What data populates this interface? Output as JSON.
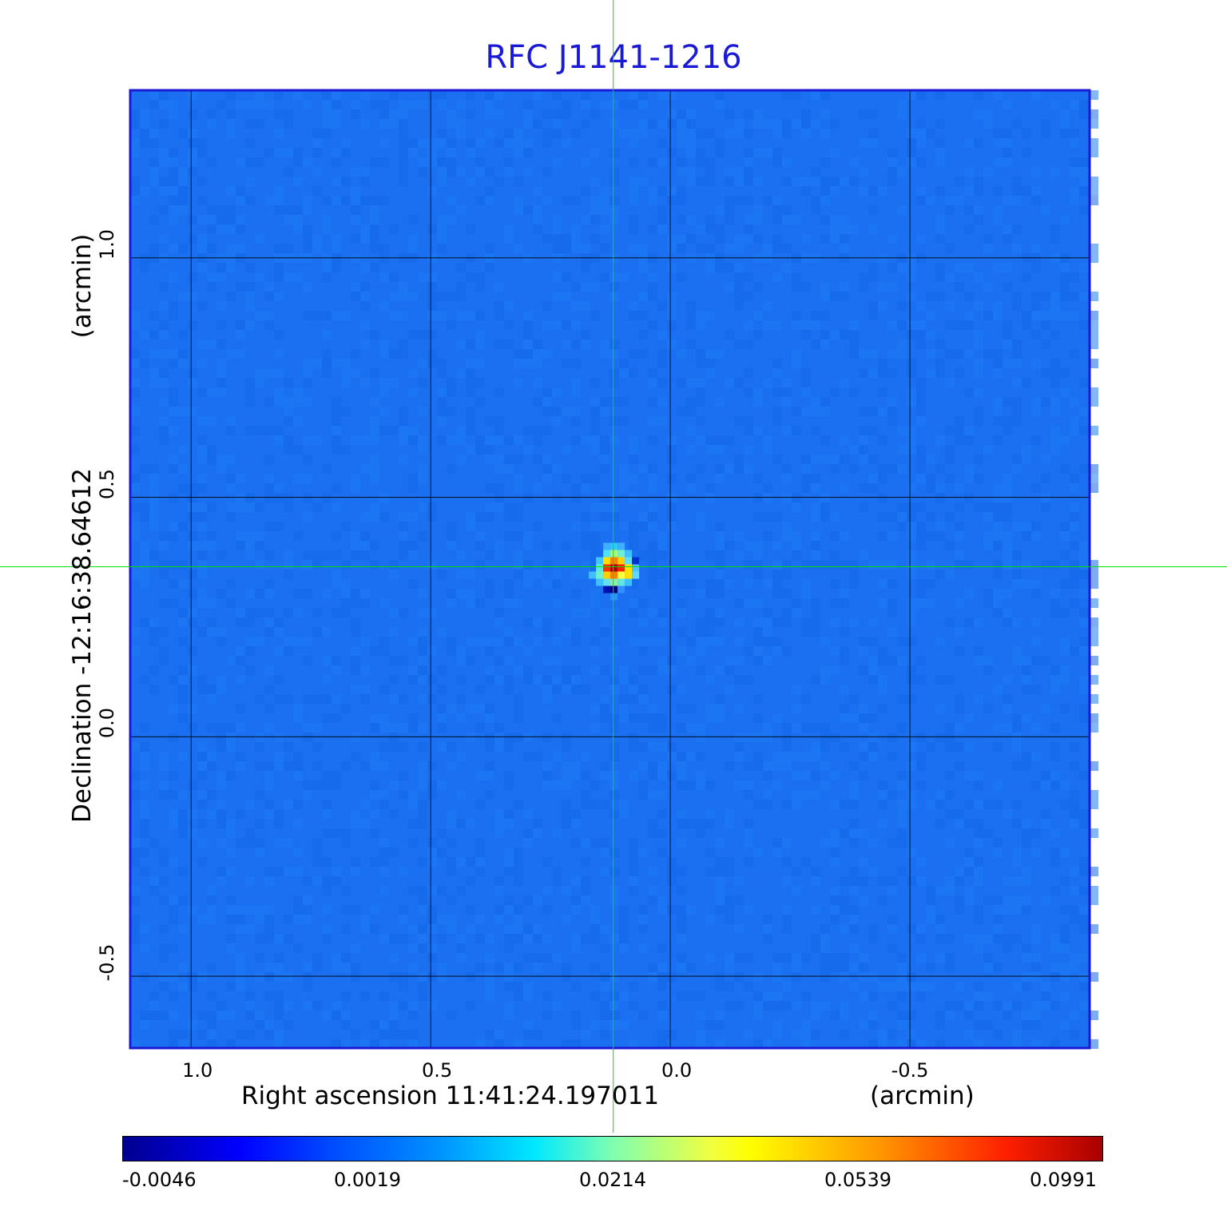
{
  "chart_data": {
    "type": "heatmap",
    "title": "RFC J1141-1216",
    "xlabel": "Right ascension  11:41:24.197011",
    "xunit": "(arcmin)",
    "ylabel": "Declination  -12:16:38.64612",
    "yunit": "(arcmin)",
    "x_ticks": [
      "1.0",
      "0.5",
      "0.0",
      "-0.5"
    ],
    "x_tick_values": [
      1.0,
      0.5,
      0.0,
      -0.5
    ],
    "y_ticks": [
      "1.0",
      "0.5",
      "0.0",
      "-0.5"
    ],
    "y_tick_values": [
      1.0,
      0.5,
      0.0,
      -0.5
    ],
    "xlim": [
      1.127,
      -0.875
    ],
    "ylim": [
      -0.65,
      1.35
    ],
    "grid": true,
    "crosshair": {
      "x": 0.119,
      "y": 0.355,
      "color": "#00e000"
    },
    "source_peak": {
      "x": 0.11,
      "y": 0.36,
      "value": 0.0991
    },
    "colorbar": {
      "tick_labels": [
        "-0.0046",
        "0.0019",
        "0.0214",
        "0.0539",
        "0.0991"
      ],
      "min": -0.0046,
      "max": 0.0991,
      "colormap": "jet"
    },
    "background_color": "#1a70f0",
    "frame_color": "#1a1ad6"
  }
}
